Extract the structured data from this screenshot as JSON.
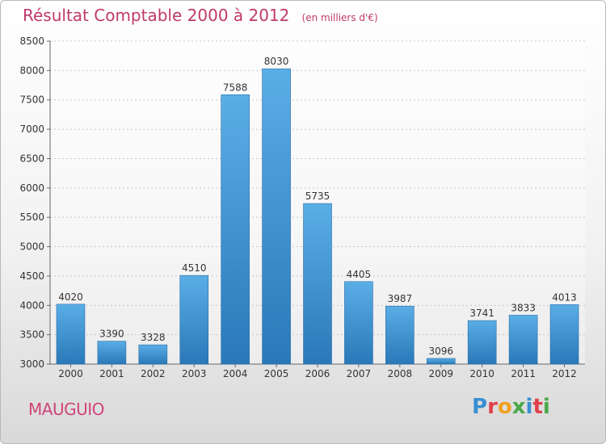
{
  "chart_data": {
    "type": "bar",
    "title": "Résultat Comptable 2000 à 2012",
    "unit": "(en milliers d'€)",
    "categories": [
      "2000",
      "2001",
      "2002",
      "2003",
      "2004",
      "2005",
      "2006",
      "2007",
      "2008",
      "2009",
      "2010",
      "2011",
      "2012"
    ],
    "values": [
      4020,
      3390,
      3328,
      4510,
      7588,
      8030,
      5735,
      4405,
      3987,
      3096,
      3741,
      3833,
      4013
    ],
    "ylim": [
      3000,
      8500
    ],
    "yticks": [
      3000,
      3500,
      4000,
      4500,
      5000,
      5500,
      6000,
      6500,
      7000,
      7500,
      8000,
      8500
    ],
    "grid": true,
    "bar_color_top": "#5aaee6",
    "bar_color_bottom": "#2a78b8"
  },
  "footer": {
    "city": "MAUGUIO",
    "logo_letters": [
      "P",
      "r",
      "o",
      "x",
      "i",
      "t",
      "i"
    ],
    "logo_colors": [
      "#3a8fd0",
      "#e0404a",
      "#f0a020",
      "#49a84a",
      "#3a8fd0",
      "#e0404a",
      "#49a84a"
    ]
  }
}
